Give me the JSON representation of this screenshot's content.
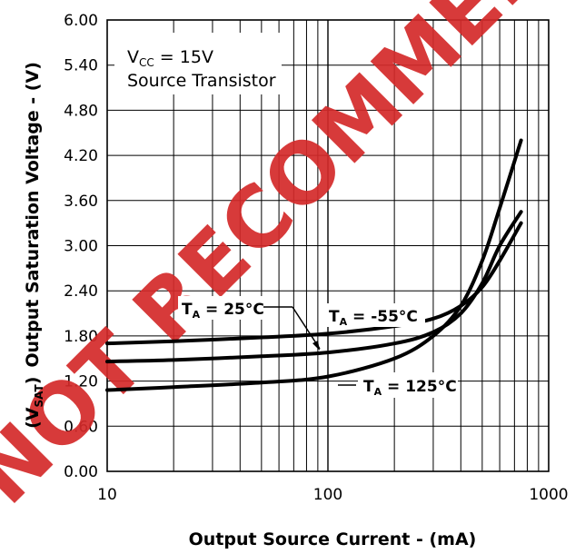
{
  "chart_data": {
    "type": "line",
    "title": "",
    "xlabel": "Output Source Current - (mA)",
    "ylabel_symbol": "(V",
    "ylabel_sub": "SAT",
    "ylabel_close": ")",
    "ylabel_text": "Output Saturation Voltage - (V)",
    "x_scale": "log",
    "xlim": [
      10,
      1000
    ],
    "ylim": [
      0,
      6
    ],
    "grid": true,
    "x_tick_labels": [
      {
        "value": 10,
        "label": "10"
      },
      {
        "value": 100,
        "label": "100"
      },
      {
        "value": 1000,
        "label": "1000"
      }
    ],
    "y_tick_labels": [
      {
        "value": 0,
        "label": "0.00"
      },
      {
        "value": 0.6,
        "label": "0.60"
      },
      {
        "value": 1.2,
        "label": "1.20"
      },
      {
        "value": 1.8,
        "label": "1.80"
      },
      {
        "value": 2.4,
        "label": "2.40"
      },
      {
        "value": 3.0,
        "label": "3.00"
      },
      {
        "value": 3.6,
        "label": "3.60"
      },
      {
        "value": 4.2,
        "label": "4.20"
      },
      {
        "value": 4.8,
        "label": "4.80"
      },
      {
        "value": 5.4,
        "label": "5.40"
      },
      {
        "value": 6.0,
        "label": "6.00"
      }
    ],
    "annotation": {
      "vcc_symbol": "V",
      "vcc_sub": "CC",
      "vcc_value": " = 15V",
      "line2": "Source Transistor"
    },
    "series": [
      {
        "label_symbol": "T",
        "label_sub": "A",
        "label_value": " = -55°C",
        "x": [
          10,
          20,
          50,
          100,
          200,
          300,
          400,
          500,
          600,
          750
        ],
        "y": [
          1.7,
          1.73,
          1.78,
          1.83,
          1.93,
          2.03,
          2.2,
          2.45,
          2.8,
          3.3
        ]
      },
      {
        "label_symbol": "T",
        "label_sub": "A",
        "label_value": " = 25°C",
        "x": [
          10,
          20,
          50,
          100,
          200,
          300,
          400,
          500,
          600,
          750
        ],
        "y": [
          1.46,
          1.48,
          1.53,
          1.58,
          1.7,
          1.85,
          2.1,
          2.5,
          3.0,
          3.45
        ]
      },
      {
        "label_symbol": "T",
        "label_sub": "A",
        "label_value": " = 125°C",
        "x": [
          10,
          20,
          50,
          100,
          200,
          300,
          400,
          500,
          600,
          750
        ],
        "y": [
          1.08,
          1.12,
          1.18,
          1.26,
          1.5,
          1.8,
          2.2,
          2.8,
          3.5,
          4.4
        ]
      }
    ],
    "watermark": "NOT RECOMMENDED FOR NEW DESIGN"
  }
}
